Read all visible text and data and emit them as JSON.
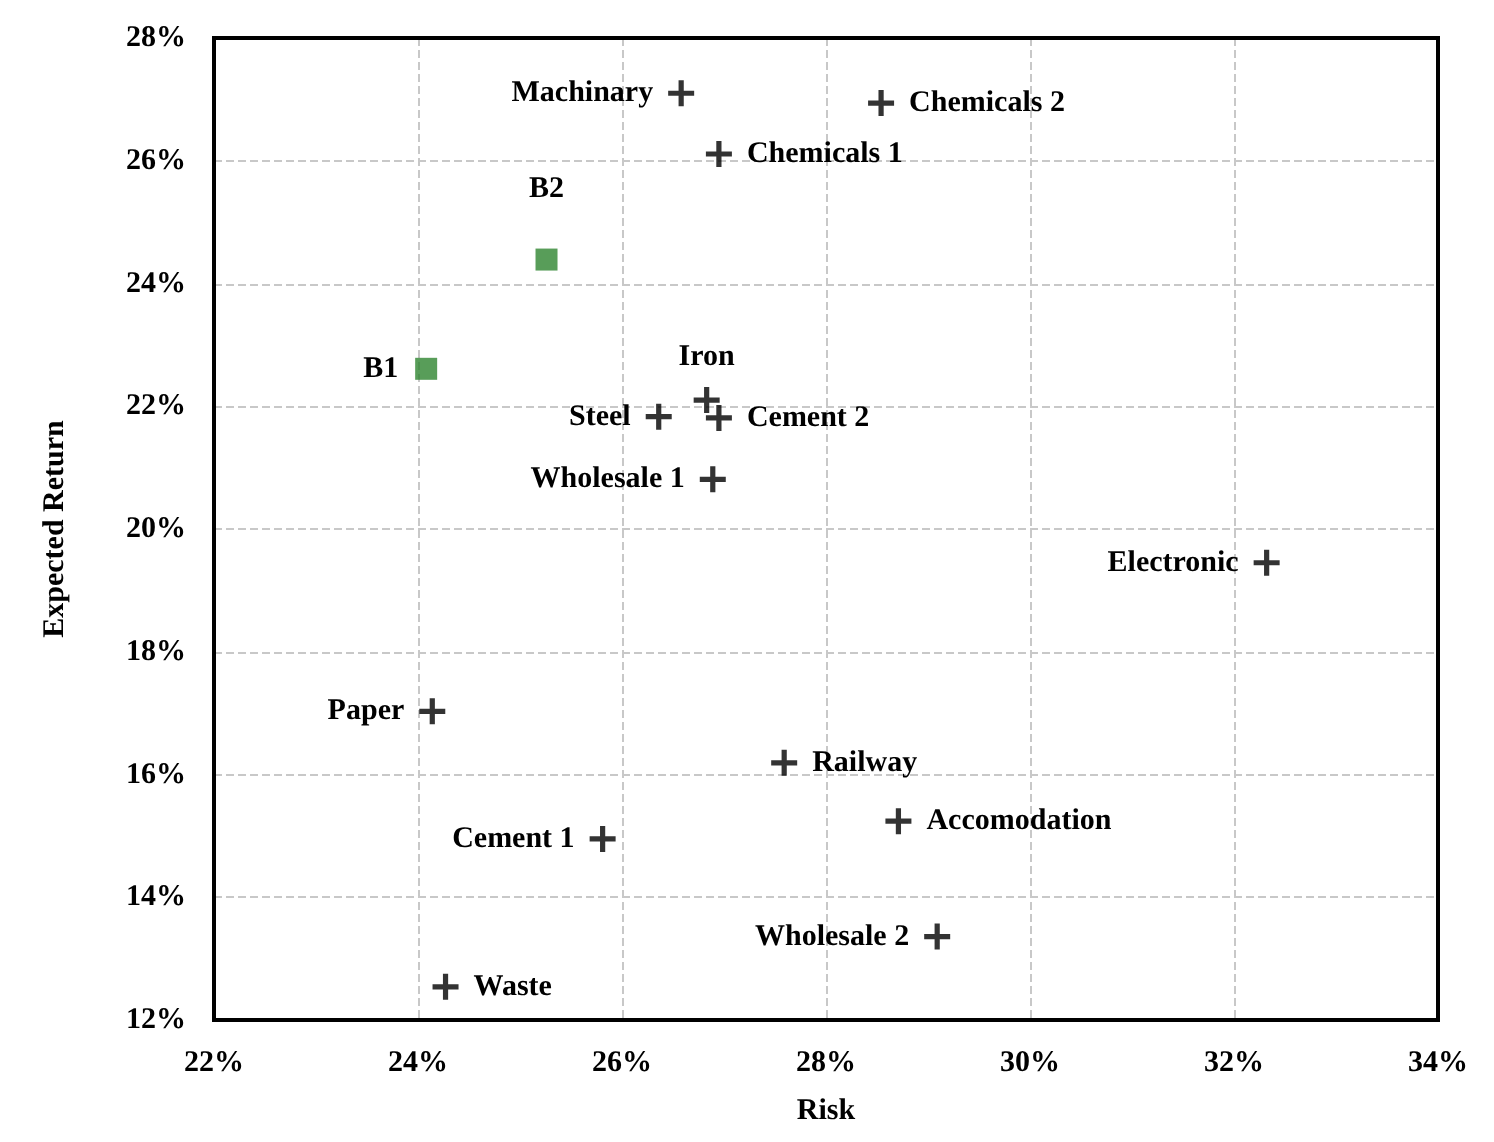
{
  "chart_data": {
    "type": "scatter",
    "xlabel": "Risk",
    "ylabel": "Expected Return",
    "xlim": [
      22,
      34
    ],
    "xticks": [
      {
        "value": 22,
        "label": "22%"
      },
      {
        "value": 24,
        "label": "24%"
      },
      {
        "value": 26,
        "label": "26%"
      },
      {
        "value": 28,
        "label": "28%"
      },
      {
        "value": 30,
        "label": "30%"
      },
      {
        "value": 32,
        "label": "32%"
      },
      {
        "value": 34,
        "label": "34%"
      }
    ],
    "ylim": [
      12,
      28
    ],
    "yticks": [
      {
        "value": 12,
        "label": "12%"
      },
      {
        "value": 14,
        "label": "14%"
      },
      {
        "value": 16,
        "label": "16%"
      },
      {
        "value": 18,
        "label": "18%"
      },
      {
        "value": 20,
        "label": "20%"
      },
      {
        "value": 22,
        "label": "22%"
      },
      {
        "value": 24,
        "label": "24%"
      },
      {
        "value": 26,
        "label": "26%"
      },
      {
        "value": 28,
        "label": "28%"
      }
    ],
    "grid": true,
    "series": [
      {
        "color": "#000000",
        "marker": "cross",
        "x": [
          26.58,
          28.54,
          26.95,
          26.83,
          26.36,
          26.95,
          26.89,
          32.32,
          24.14,
          27.59,
          28.71,
          25.81,
          29.09,
          24.27
        ],
        "values": [
          27.1,
          26.94,
          26.11,
          22.1,
          21.83,
          21.81,
          20.81,
          19.45,
          17.03,
          16.19,
          15.24,
          14.95,
          13.36,
          12.54
        ]
      },
      {
        "color": "#2e8530",
        "marker": "square",
        "x": [
          25.26,
          24.08
        ],
        "values": [
          24.39,
          22.61
        ]
      }
    ],
    "annotations": [
      {
        "text": "Machinary",
        "x": 26.58,
        "y": 27.1
      },
      {
        "text": "Chemicals 2",
        "x": 28.54,
        "y": 26.94
      },
      {
        "text": "Chemicals 1",
        "x": 26.95,
        "y": 26.11
      },
      {
        "text": "Iron",
        "x": 26.83,
        "y": 22.1
      },
      {
        "text": "Steel",
        "x": 26.36,
        "y": 21.83
      },
      {
        "text": "Cement 2",
        "x": 26.95,
        "y": 21.81
      },
      {
        "text": "Wholesale 1",
        "x": 26.89,
        "y": 20.81
      },
      {
        "text": "Electronic",
        "x": 32.32,
        "y": 19.45
      },
      {
        "text": "Paper",
        "x": 24.14,
        "y": 17.03
      },
      {
        "text": "Railway",
        "x": 27.59,
        "y": 16.19
      },
      {
        "text": "Accomodation",
        "x": 28.71,
        "y": 15.24
      },
      {
        "text": "Cement 1",
        "x": 25.81,
        "y": 14.95
      },
      {
        "text": "Wholesale 2",
        "x": 29.09,
        "y": 13.36
      },
      {
        "text": "Waste",
        "x": 24.27,
        "y": 12.54
      },
      {
        "text": "B2",
        "x": 25.26,
        "y": 24.39
      },
      {
        "text": "B1",
        "x": 24.08,
        "y": 22.61
      }
    ]
  }
}
